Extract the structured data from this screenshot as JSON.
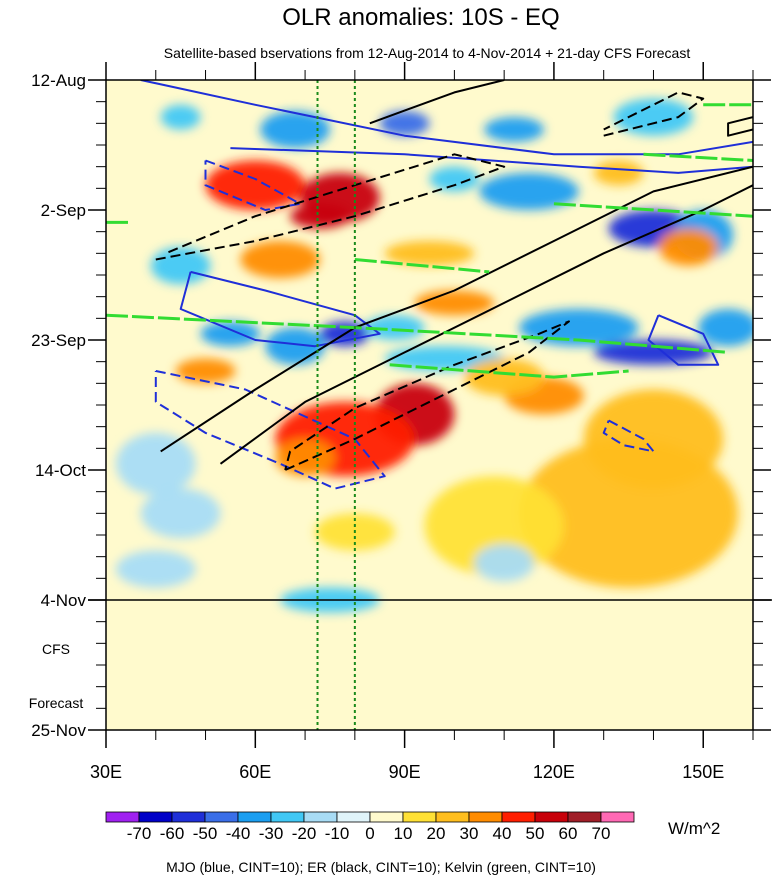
{
  "chart_data": {
    "type": "heatmap",
    "title": "OLR anomalies: 10S - EQ",
    "subtitle": "Satellite-based bservations from 12-Aug-2014 to 4-Nov-2014 + 21-day CFS Forecast",
    "x_axis": {
      "range": [
        30,
        160
      ],
      "ticks": [
        30,
        60,
        90,
        120,
        150
      ],
      "tick_labels": [
        "30E",
        "60E",
        "90E",
        "120E",
        "150E"
      ]
    },
    "y_axis": {
      "range_days": [
        0,
        105
      ],
      "tick_days": [
        0,
        21,
        42,
        63,
        84,
        105
      ],
      "tick_labels": [
        "12-Aug",
        "2-Sep",
        "23-Sep",
        "14-Oct",
        "4-Nov",
        "25-Nov"
      ],
      "reversed": true
    },
    "forecast_start_day": 84,
    "forecast_label_1": "CFS",
    "forecast_label_2": "Forecast",
    "reference_lons": [
      72.5,
      80
    ],
    "colorbar": {
      "levels": [
        -70,
        -60,
        -50,
        -40,
        -30,
        -20,
        -10,
        0,
        10,
        20,
        30,
        40,
        50,
        60,
        70
      ],
      "level_labels": [
        "-70",
        "-60",
        "-50",
        "-40",
        "-30",
        "-20",
        "-10",
        "0",
        "10",
        "20",
        "30",
        "40",
        "50",
        "60",
        "70"
      ],
      "colors": [
        "#a020f0",
        "#0000c8",
        "#1f2fd8",
        "#3a6ee8",
        "#1b9ef0",
        "#41c8f5",
        "#a8dcf5",
        "#e0f4fa",
        "#fffacd",
        "#ffe135",
        "#ffbe1e",
        "#ff8c00",
        "#ff1e00",
        "#c8000a",
        "#a01e28",
        "#ff69b4"
      ],
      "units": "W/m^2"
    },
    "anomaly_blobs": [
      {
        "lon": 60,
        "day": 17,
        "rl": 10,
        "rd": 4,
        "v": 40
      },
      {
        "lon": 77,
        "day": 19,
        "rl": 8,
        "rd": 4,
        "v": 55
      },
      {
        "lon": 73,
        "day": 22,
        "rl": 6,
        "rd": 2,
        "v": 50
      },
      {
        "lon": 68,
        "day": 8,
        "rl": 7,
        "rd": 3,
        "v": -40
      },
      {
        "lon": 90,
        "day": 7,
        "rl": 5,
        "rd": 2,
        "v": -50
      },
      {
        "lon": 45,
        "day": 6,
        "rl": 4,
        "rd": 2,
        "v": -30
      },
      {
        "lon": 112,
        "day": 8,
        "rl": 6,
        "rd": 2,
        "v": -40
      },
      {
        "lon": 140,
        "day": 6,
        "rl": 8,
        "rd": 3,
        "v": -30
      },
      {
        "lon": 115,
        "day": 18,
        "rl": 10,
        "rd": 3,
        "v": -40
      },
      {
        "lon": 140,
        "day": 24,
        "rl": 9,
        "rd": 3,
        "v": -60
      },
      {
        "lon": 150,
        "day": 25,
        "rl": 6,
        "rd": 4,
        "v": -40
      },
      {
        "lon": 45,
        "day": 30,
        "rl": 6,
        "rd": 3,
        "v": -30
      },
      {
        "lon": 65,
        "day": 29,
        "rl": 8,
        "rd": 3,
        "v": 30
      },
      {
        "lon": 95,
        "day": 28,
        "rl": 9,
        "rd": 2,
        "v": 20
      },
      {
        "lon": 147,
        "day": 27,
        "rl": 6,
        "rd": 3,
        "v": 30
      },
      {
        "lon": 68,
        "day": 43,
        "rl": 6,
        "rd": 3,
        "v": -40
      },
      {
        "lon": 78,
        "day": 41,
        "rl": 5,
        "rd": 2,
        "v": -60
      },
      {
        "lon": 55,
        "day": 41,
        "rl": 6,
        "rd": 2,
        "v": -40
      },
      {
        "lon": 88,
        "day": 40,
        "rl": 6,
        "rd": 2,
        "v": -30
      },
      {
        "lon": 125,
        "day": 40,
        "rl": 12,
        "rd": 3,
        "v": -40
      },
      {
        "lon": 100,
        "day": 36,
        "rl": 8,
        "rd": 2,
        "v": 30
      },
      {
        "lon": 140,
        "day": 44,
        "rl": 12,
        "rd": 2,
        "v": -60
      },
      {
        "lon": 50,
        "day": 47,
        "rl": 6,
        "rd": 2,
        "v": 30
      },
      {
        "lon": 98,
        "day": 45,
        "rl": 12,
        "rd": 2,
        "v": -30
      },
      {
        "lon": 92,
        "day": 54,
        "rl": 8,
        "rd": 5,
        "v": 55
      },
      {
        "lon": 78,
        "day": 58,
        "rl": 14,
        "rd": 6,
        "v": 40
      },
      {
        "lon": 70,
        "day": 61,
        "rl": 6,
        "rd": 3,
        "v": 30
      },
      {
        "lon": 118,
        "day": 51,
        "rl": 8,
        "rd": 3,
        "v": 30
      },
      {
        "lon": 110,
        "day": 48,
        "rl": 8,
        "rd": 3,
        "v": 20
      },
      {
        "lon": 140,
        "day": 58,
        "rl": 14,
        "rd": 8,
        "v": 20
      },
      {
        "lon": 135,
        "day": 70,
        "rl": 22,
        "rd": 12,
        "v": 20
      },
      {
        "lon": 108,
        "day": 72,
        "rl": 14,
        "rd": 8,
        "v": 15
      },
      {
        "lon": 40,
        "day": 62,
        "rl": 8,
        "rd": 5,
        "v": -20
      },
      {
        "lon": 45,
        "day": 70,
        "rl": 8,
        "rd": 4,
        "v": -20
      },
      {
        "lon": 80,
        "day": 73,
        "rl": 8,
        "rd": 3,
        "v": 15
      },
      {
        "lon": 40,
        "day": 79,
        "rl": 8,
        "rd": 3,
        "v": -20
      },
      {
        "lon": 75,
        "day": 84,
        "rl": 10,
        "rd": 2,
        "v": -30
      },
      {
        "lon": 110,
        "day": 78,
        "rl": 6,
        "rd": 3,
        "v": -20
      },
      {
        "lon": 155,
        "day": 40,
        "rl": 6,
        "rd": 3,
        "v": -40
      },
      {
        "lon": 133,
        "day": 15,
        "rl": 5,
        "rd": 2,
        "v": 20
      },
      {
        "lon": 100,
        "day": 16,
        "rl": 5,
        "rd": 2,
        "v": -30
      }
    ],
    "contours": {
      "mjo": [
        {
          "style": "solid",
          "pts": [
            [
              37,
              0
            ],
            [
              60,
              4
            ],
            [
              90,
              9
            ],
            [
              120,
              12
            ],
            [
              145,
              12
            ],
            [
              160,
              10
            ]
          ]
        },
        {
          "style": "solid",
          "pts": [
            [
              55,
              11
            ],
            [
              90,
              12
            ],
            [
              125,
              14
            ],
            [
              145,
              15
            ],
            [
              160,
              14
            ]
          ]
        },
        {
          "style": "dashed",
          "pts": [
            [
              50,
              13
            ],
            [
              60,
              16
            ],
            [
              69,
              20
            ],
            [
              62,
              21
            ],
            [
              50,
              17
            ],
            [
              50,
              13
            ]
          ]
        },
        {
          "style": "solid",
          "pts": [
            [
              47,
              31
            ],
            [
              62,
              34
            ],
            [
              80,
              38
            ],
            [
              85,
              41
            ],
            [
              72,
              43
            ],
            [
              60,
              42
            ],
            [
              45,
              37
            ],
            [
              47,
              31
            ]
          ]
        },
        {
          "style": "dashed",
          "pts": [
            [
              40,
              47
            ],
            [
              58,
              50
            ],
            [
              80,
              58
            ],
            [
              86,
              64
            ],
            [
              76,
              66
            ],
            [
              65,
              62
            ],
            [
              50,
              57
            ],
            [
              40,
              52
            ],
            [
              40,
              47
            ]
          ]
        },
        {
          "style": "solid",
          "pts": [
            [
              141,
              38
            ],
            [
              150,
              41
            ],
            [
              153,
              46
            ],
            [
              145,
              46
            ],
            [
              139,
              42
            ],
            [
              141,
              38
            ]
          ]
        },
        {
          "style": "dashed",
          "pts": [
            [
              131,
              55
            ],
            [
              138,
              58
            ],
            [
              140,
              60
            ],
            [
              134,
              59
            ],
            [
              130,
              57
            ],
            [
              131,
              55
            ]
          ]
        }
      ],
      "er": [
        {
          "style": "solid",
          "pts": [
            [
              83,
              7
            ],
            [
              100,
              2
            ],
            [
              110,
              0
            ]
          ]
        },
        {
          "style": "solid",
          "pts": [
            [
              160,
              8
            ],
            [
              155,
              9
            ],
            [
              155,
              7
            ],
            [
              160,
              6
            ]
          ]
        },
        {
          "style": "dashed",
          "pts": [
            [
              130,
              9
            ],
            [
              145,
              6
            ],
            [
              150,
              3
            ],
            [
              145,
              2
            ],
            [
              130,
              8
            ]
          ]
        },
        {
          "style": "dashed",
          "pts": [
            [
              40,
              29
            ],
            [
              60,
              26
            ],
            [
              80,
              22
            ],
            [
              100,
              17
            ],
            [
              110,
              14
            ],
            [
              100,
              12
            ],
            [
              80,
              17
            ],
            [
              60,
              22
            ],
            [
              42,
              28
            ]
          ]
        },
        {
          "style": "solid",
          "pts": [
            [
              41,
              60
            ],
            [
              60,
              50
            ],
            [
              80,
              40
            ],
            [
              100,
              34
            ],
            [
              120,
              26
            ],
            [
              140,
              18
            ],
            [
              160,
              14
            ]
          ]
        },
        {
          "style": "solid",
          "pts": [
            [
              53,
              62
            ],
            [
              70,
              52
            ],
            [
              90,
              44
            ],
            [
              110,
              36
            ],
            [
              130,
              28
            ],
            [
              150,
              21
            ],
            [
              160,
              17
            ]
          ]
        },
        {
          "style": "dashed",
          "pts": [
            [
              66,
              63
            ],
            [
              80,
              58
            ],
            [
              100,
              50
            ],
            [
              115,
              44
            ],
            [
              123,
              39
            ],
            [
              117,
              41
            ],
            [
              100,
              46
            ],
            [
              80,
              53
            ],
            [
              67,
              60
            ],
            [
              66,
              63
            ]
          ]
        }
      ],
      "kelvin": [
        {
          "pts": [
            [
              150,
              4
            ],
            [
              160,
              4
            ]
          ]
        },
        {
          "pts": [
            [
              138,
              12
            ],
            [
              160,
              13
            ]
          ]
        },
        {
          "pts": [
            [
              120,
              20
            ],
            [
              160,
              22
            ]
          ]
        },
        {
          "pts": [
            [
              30,
              23
            ],
            [
              35,
              23
            ]
          ]
        },
        {
          "pts": [
            [
              80,
              29
            ],
            [
              107,
              31
            ]
          ]
        },
        {
          "pts": [
            [
              30,
              38
            ],
            [
              80,
              40
            ],
            [
              125,
              42
            ],
            [
              155,
              44
            ]
          ]
        },
        {
          "pts": [
            [
              87,
              46
            ],
            [
              120,
              48
            ],
            [
              135,
              47
            ]
          ]
        }
      ]
    },
    "legend_note": "MJO (blue, CINT=10); ER (black, CINT=10); Kelvin (green, CINT=10)"
  }
}
